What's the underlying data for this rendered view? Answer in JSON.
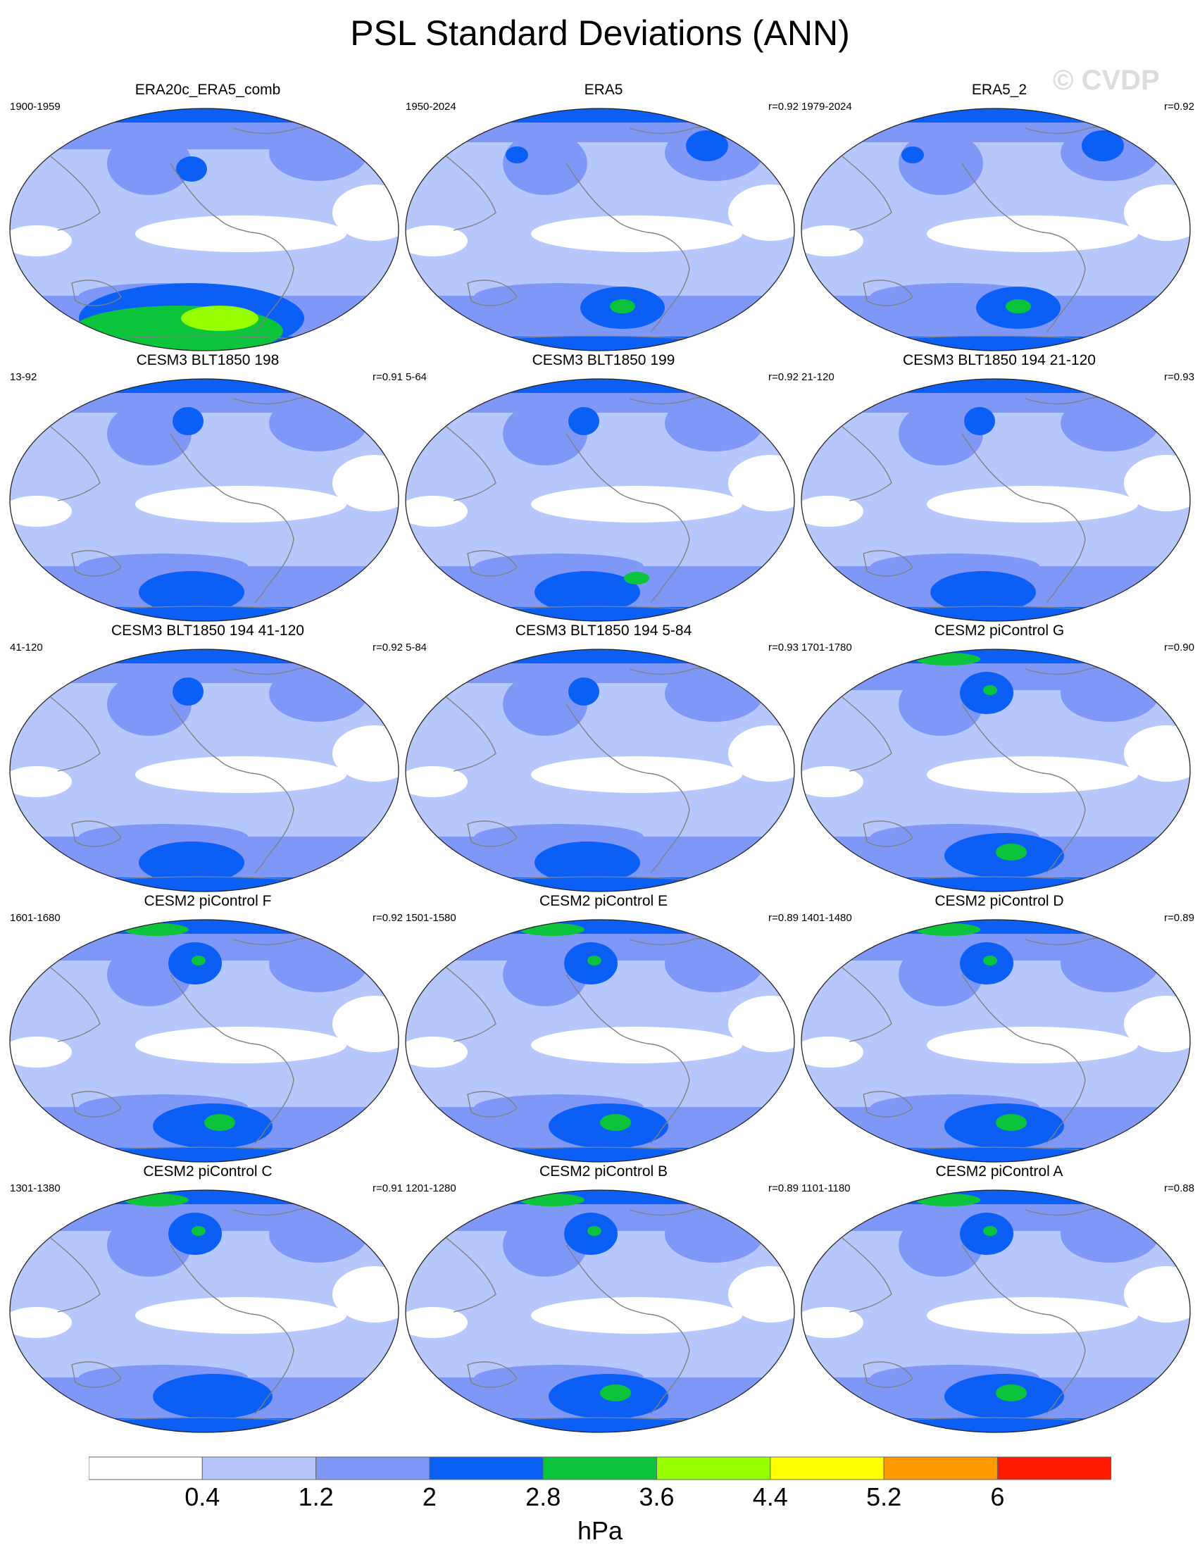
{
  "title": "PSL Standard Deviations (ANN)",
  "watermark": "© CVDP",
  "units": "hPa",
  "colorbar": {
    "labels": [
      "0.4",
      "1.2",
      "2",
      "2.8",
      "3.6",
      "4.4",
      "5.2",
      "6"
    ],
    "colors": [
      "#ffffff",
      "#b6c8fb",
      "#7f98f7",
      "#0b5ff5",
      "#0cc43c",
      "#96ff00",
      "#ffff00",
      "#ff9a00",
      "#ff1a00"
    ]
  },
  "panels": [
    {
      "title": "ERA20c_ERA5_comb",
      "period": "1900-1959",
      "corr": "",
      "variant": "era20c"
    },
    {
      "title": "ERA5",
      "period": "1950-2024",
      "corr": "r=0.92",
      "variant": "era5"
    },
    {
      "title": "ERA5_2",
      "period": "1979-2024",
      "corr": "r=0.92",
      "variant": "era5"
    },
    {
      "title": "CESM3 BLT1850 198",
      "period": "13-92",
      "corr": "r=0.91",
      "variant": "cesm3"
    },
    {
      "title": "CESM3 BLT1850 199",
      "period": "5-64",
      "corr": "r=0.92",
      "variant": "cesm3g"
    },
    {
      "title": "CESM3 BLT1850 194 21-120",
      "period": "21-120",
      "corr": "r=0.93",
      "variant": "cesm3"
    },
    {
      "title": "CESM3 BLT1850 194 41-120",
      "period": "41-120",
      "corr": "r=0.92",
      "variant": "cesm3"
    },
    {
      "title": "CESM3 BLT1850 194 5-84",
      "period": "5-84",
      "corr": "r=0.93",
      "variant": "cesm3"
    },
    {
      "title": "CESM2 piControl G",
      "period": "1701-1780",
      "corr": "r=0.90",
      "variant": "cesm2"
    },
    {
      "title": "CESM2 piControl F",
      "period": "1601-1680",
      "corr": "r=0.92",
      "variant": "cesm2"
    },
    {
      "title": "CESM2 piControl E",
      "period": "1501-1580",
      "corr": "r=0.89",
      "variant": "cesm2"
    },
    {
      "title": "CESM2 piControl D",
      "period": "1401-1480",
      "corr": "r=0.89",
      "variant": "cesm2"
    },
    {
      "title": "CESM2 piControl C",
      "period": "1301-1380",
      "corr": "r=0.91",
      "variant": "cesm2n"
    },
    {
      "title": "CESM2 piControl B",
      "period": "1201-1280",
      "corr": "r=0.89",
      "variant": "cesm2"
    },
    {
      "title": "CESM2 piControl A",
      "period": "1101-1180",
      "corr": "r=0.88",
      "variant": "cesm2"
    }
  ]
}
